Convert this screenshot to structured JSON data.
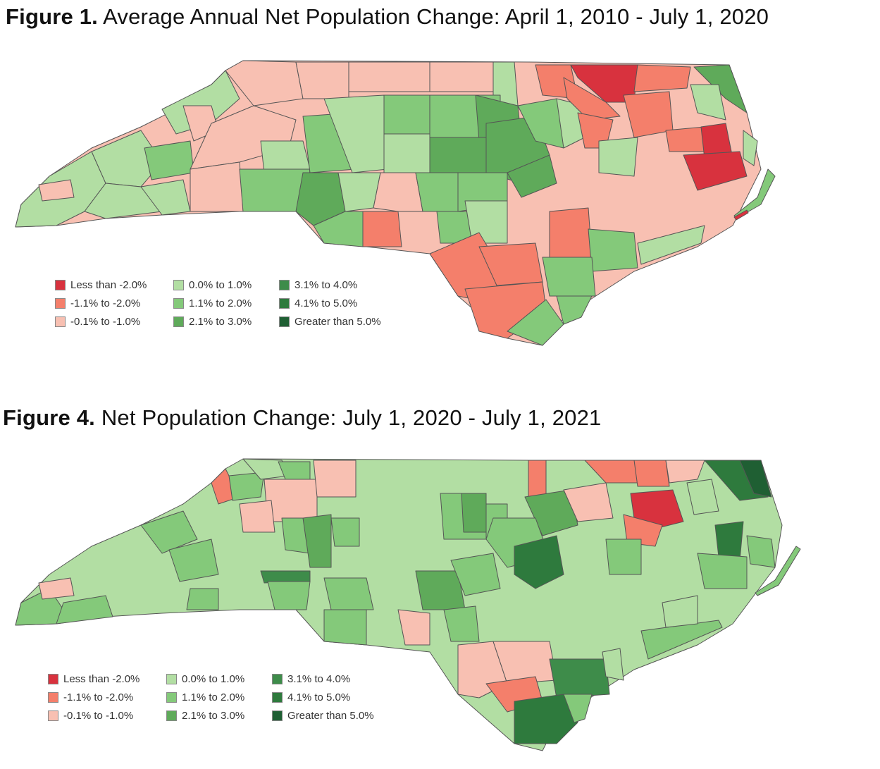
{
  "figure1": {
    "title_bold": "Figure 1.",
    "title_rest": " Average Annual Net Population Change: April 1, 2010 - July 1, 2020"
  },
  "figure4": {
    "title_bold": "Figure 4.",
    "title_rest": " Net Population Change: July 1, 2020 - July 1, 2021"
  },
  "legend": [
    {
      "label": "Less than -2.0%",
      "color": "#d8323e"
    },
    {
      "label": "-1.1% to -2.0%",
      "color": "#f47f6b"
    },
    {
      "label": "-0.1% to -1.0%",
      "color": "#f8c0b2"
    },
    {
      "label": "0.0% to 1.0%",
      "color": "#b2dea3"
    },
    {
      "label": "1.1% to 2.0%",
      "color": "#84c97a"
    },
    {
      "label": "2.1% to 3.0%",
      "color": "#5faa5a"
    },
    {
      "label": "3.1% to 4.0%",
      "color": "#3e8c4a"
    },
    {
      "label": "4.1% to 5.0%",
      "color": "#2e7a3d"
    },
    {
      "label": "Greater than 5.0%",
      "color": "#1f5f33"
    }
  ]
}
